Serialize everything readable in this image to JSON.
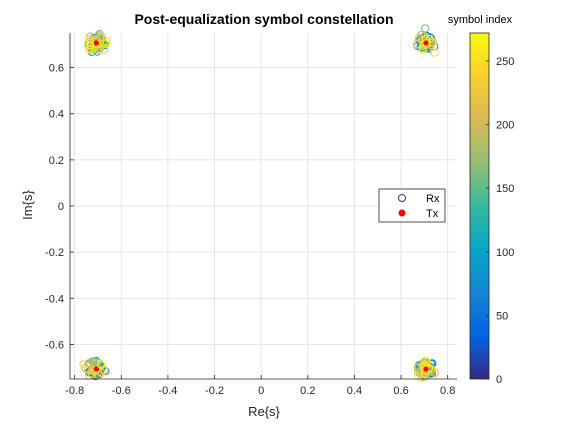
{
  "chart_data": {
    "type": "scatter",
    "title": "Post-equalization symbol constellation",
    "xlabel": "Re{s}",
    "ylabel": "Im{s}",
    "xlim": [
      -0.82,
      0.84
    ],
    "ylim": [
      -0.75,
      0.75
    ],
    "xticks": [
      -0.8,
      -0.6,
      -0.4,
      -0.2,
      0,
      0.2,
      0.4,
      0.6,
      0.8
    ],
    "yticks": [
      -0.6,
      -0.4,
      -0.2,
      0,
      0.2,
      0.4,
      0.6
    ],
    "xtick_labels": [
      "-0.8",
      "-0.6",
      "-0.4",
      "-0.2",
      "0",
      "0.2",
      "0.4",
      "0.6",
      "0.8"
    ],
    "ytick_labels": [
      "-0.6",
      "-0.4",
      "-0.2",
      "0",
      "0.2",
      "0.4",
      "0.6"
    ],
    "grid": true,
    "legend_position": "right",
    "series": [
      {
        "name": "Rx",
        "marker": "open-circle",
        "color_by": "symbol index",
        "clusters": [
          {
            "center": [
              -0.707,
              0.707
            ],
            "spread": 0.03
          },
          {
            "center": [
              0.707,
              0.707
            ],
            "spread": 0.03
          },
          {
            "center": [
              -0.707,
              -0.707
            ],
            "spread": 0.03
          },
          {
            "center": [
              0.707,
              -0.707
            ],
            "spread": 0.03
          }
        ],
        "points_per_cluster": 68
      },
      {
        "name": "Tx",
        "marker": "filled-circle",
        "color": "#ff0000",
        "x": [
          -0.707,
          0.707,
          -0.707,
          0.707
        ],
        "y": [
          0.707,
          0.707,
          -0.707,
          -0.707
        ]
      }
    ],
    "colorbar": {
      "title": "symbol index",
      "range": [
        0,
        272
      ],
      "ticks": [
        0,
        50,
        100,
        150,
        200,
        250
      ],
      "tick_labels": [
        "0",
        "50",
        "100",
        "150",
        "200",
        "250"
      ],
      "colormap": "parula"
    }
  }
}
